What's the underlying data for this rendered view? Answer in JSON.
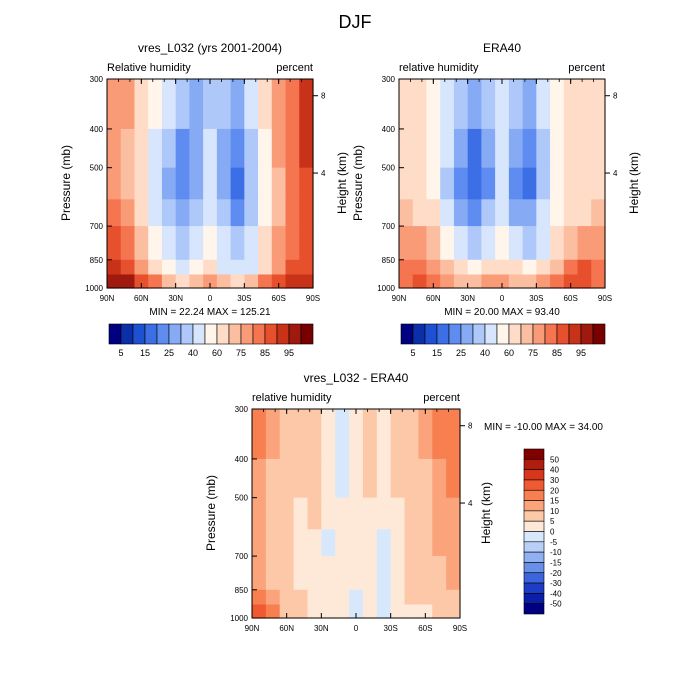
{
  "page_title": "DJF",
  "panels": [
    {
      "title": "vres_L032 (yrs 2001-2004)",
      "left_label": "Relative humidity",
      "right_label": "percent",
      "ylabel": "Pressure (mb)",
      "ylabel_right": "Height (km)",
      "stats": "MIN =  22.24  MAX = 125.21"
    },
    {
      "title": "ERA40",
      "left_label": "relative humidity",
      "right_label": "percent",
      "ylabel": "Pressure (mb)",
      "ylabel_right": "Height (km)",
      "stats": "MIN =  20.00  MAX =  93.40"
    },
    {
      "title": "vres_L032 - ERA40",
      "left_label": "relative humidity",
      "right_label": "percent",
      "ylabel": "Pressure (mb)",
      "ylabel_right": "Height (km)",
      "stats": "MIN = -10.00  MAX =  34.00"
    }
  ],
  "colorbars": {
    "absolute": {
      "labels": [
        "5",
        "15",
        "25",
        "40",
        "60",
        "75",
        "85",
        "95"
      ],
      "colors": [
        "#000080",
        "#0a2fa8",
        "#1e50d2",
        "#3c6ee6",
        "#5f8cf0",
        "#87aaf5",
        "#afc8fa",
        "#d7e6fc",
        "#fff5eb",
        "#fedcc8",
        "#fcbea0",
        "#fa9b78",
        "#f57550",
        "#e6502d",
        "#c83219",
        "#a0190f",
        "#780000"
      ]
    },
    "difference": {
      "labels": [
        "50",
        "40",
        "30",
        "20",
        "15",
        "10",
        "5",
        "0",
        "-5",
        "-10",
        "-15",
        "-20",
        "-30",
        "-40",
        "-50"
      ],
      "colors": [
        "#800000",
        "#b01c0e",
        "#d8361c",
        "#f05a32",
        "#f88050",
        "#fba47c",
        "#fdc8a8",
        "#fee8d8",
        "#d8e8fc",
        "#b8d0f8",
        "#90b0f0",
        "#6890e8",
        "#3c64dc",
        "#1e3cc8",
        "#0a1ea8",
        "#000080"
      ]
    }
  },
  "chart_data": [
    {
      "type": "heatmap",
      "title": "vres_L032 (yrs 2001-2004)",
      "xlabel": "",
      "ylabel": "Pressure (mb)",
      "y2label": "Height (km)",
      "x_ticks": [
        "90N",
        "60N",
        "30N",
        "0",
        "30S",
        "60S",
        "90S"
      ],
      "y_ticks": [
        "300",
        "400",
        "500",
        "700",
        "850",
        "1000"
      ],
      "y2_ticks": [
        "8",
        "4"
      ],
      "xlim": [
        90,
        -90
      ],
      "ylim": [
        1000,
        300
      ],
      "y_scale": "log",
      "min": 22.24,
      "max": 125.21,
      "z": [
        [
          75,
          75,
          62,
          50,
          40,
          30,
          25,
          35,
          30,
          25,
          40,
          60,
          75,
          80,
          90
        ],
        [
          75,
          70,
          60,
          45,
          30,
          20,
          25,
          40,
          25,
          20,
          35,
          55,
          75,
          80,
          90
        ],
        [
          78,
          72,
          60,
          40,
          25,
          20,
          25,
          40,
          25,
          18,
          35,
          55,
          70,
          80,
          88
        ],
        [
          80,
          75,
          62,
          45,
          30,
          25,
          30,
          45,
          30,
          22,
          35,
          55,
          70,
          80,
          88
        ],
        [
          85,
          80,
          70,
          55,
          40,
          35,
          40,
          55,
          40,
          30,
          40,
          60,
          75,
          82,
          88
        ],
        [
          90,
          85,
          78,
          65,
          50,
          45,
          50,
          60,
          48,
          40,
          48,
          65,
          78,
          85,
          88
        ],
        [
          95,
          95,
          88,
          80,
          70,
          65,
          70,
          75,
          70,
          65,
          70,
          80,
          88,
          92,
          90
        ]
      ]
    },
    {
      "type": "heatmap",
      "title": "ERA40",
      "xlabel": "",
      "ylabel": "Pressure (mb)",
      "y2label": "Height (km)",
      "x_ticks": [
        "90N",
        "60N",
        "30N",
        "0",
        "30S",
        "60S",
        "90S"
      ],
      "y_ticks": [
        "300",
        "400",
        "500",
        "700",
        "850",
        "1000"
      ],
      "y2_ticks": [
        "8",
        "4"
      ],
      "xlim": [
        90,
        -90
      ],
      "ylim": [
        1000,
        300
      ],
      "y_scale": "log",
      "min": 20.0,
      "max": 93.4,
      "z": [
        [
          60,
          62,
          55,
          45,
          35,
          28,
          30,
          40,
          30,
          28,
          40,
          55,
          62,
          62,
          60
        ],
        [
          62,
          62,
          55,
          40,
          25,
          18,
          25,
          40,
          25,
          20,
          35,
          55,
          62,
          62,
          62
        ],
        [
          65,
          62,
          55,
          38,
          20,
          15,
          22,
          40,
          22,
          18,
          35,
          55,
          62,
          62,
          65
        ],
        [
          70,
          68,
          60,
          45,
          28,
          22,
          30,
          45,
          28,
          25,
          40,
          58,
          65,
          68,
          70
        ],
        [
          75,
          75,
          70,
          58,
          42,
          35,
          40,
          55,
          40,
          35,
          45,
          62,
          72,
          75,
          75
        ],
        [
          80,
          82,
          78,
          70,
          60,
          55,
          60,
          65,
          60,
          55,
          62,
          72,
          80,
          85,
          80
        ],
        [
          82,
          85,
          82,
          78,
          72,
          70,
          75,
          78,
          72,
          70,
          75,
          82,
          88,
          88,
          82
        ]
      ]
    },
    {
      "type": "heatmap",
      "title": "vres_L032 - ERA40",
      "xlabel": "",
      "ylabel": "Pressure (mb)",
      "y2label": "Height (km)",
      "x_ticks": [
        "90N",
        "60N",
        "30N",
        "0",
        "30S",
        "60S",
        "90S"
      ],
      "y_ticks": [
        "300",
        "400",
        "500",
        "700",
        "850",
        "1000"
      ],
      "y2_ticks": [
        "8",
        "4"
      ],
      "xlim": [
        90,
        -90
      ],
      "ylim": [
        1000,
        300
      ],
      "y_scale": "log",
      "min": -10.0,
      "max": 34.0,
      "z": [
        [
          15,
          10,
          5,
          5,
          5,
          0,
          -3,
          2,
          5,
          0,
          5,
          5,
          10,
          15,
          18
        ],
        [
          12,
          8,
          5,
          5,
          5,
          0,
          -2,
          0,
          5,
          0,
          5,
          5,
          8,
          12,
          15
        ],
        [
          10,
          6,
          5,
          3,
          5,
          0,
          0,
          0,
          3,
          0,
          2,
          5,
          8,
          10,
          12
        ],
        [
          10,
          6,
          5,
          3,
          2,
          -2,
          0,
          0,
          2,
          -3,
          0,
          5,
          6,
          10,
          10
        ],
        [
          10,
          6,
          5,
          3,
          2,
          0,
          0,
          0,
          0,
          -3,
          0,
          5,
          5,
          8,
          10
        ],
        [
          15,
          10,
          8,
          5,
          3,
          0,
          0,
          -2,
          0,
          -3,
          0,
          5,
          5,
          6,
          8
        ],
        [
          25,
          15,
          8,
          5,
          3,
          0,
          0,
          -2,
          0,
          -2,
          0,
          2,
          3,
          5,
          8
        ]
      ]
    }
  ]
}
